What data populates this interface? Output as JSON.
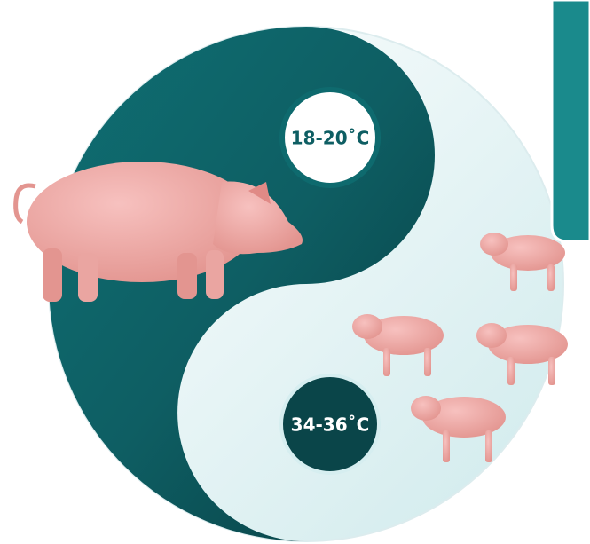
{
  "labels": {
    "top": "18-20˚C",
    "bottom": "34-36˚C"
  }
}
